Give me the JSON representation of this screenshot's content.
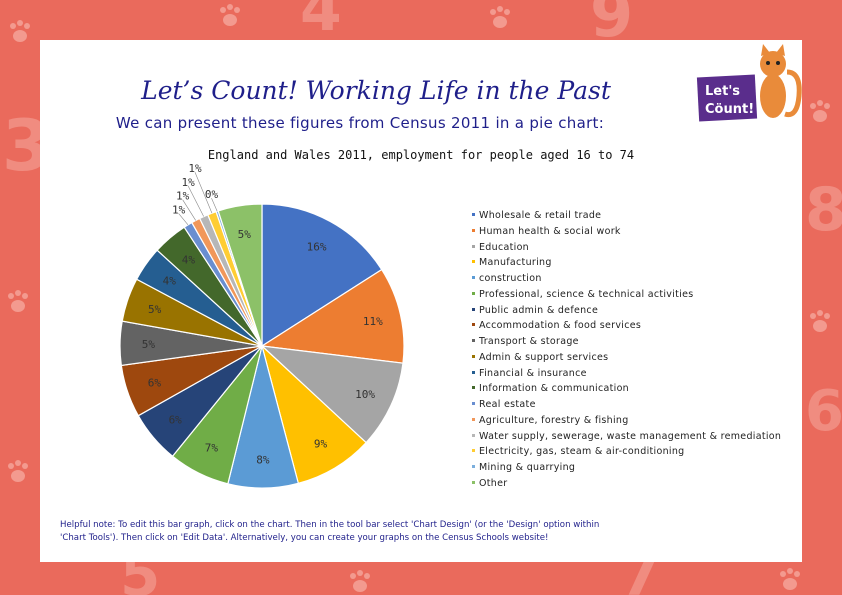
{
  "header": {
    "title": "Let’s Count! Working Life in the Past",
    "subtitle": "We can present these figures from Census 2011 in a pie chart:"
  },
  "logo": {
    "text_line1": "Let's",
    "text_line2": "Cöunt!"
  },
  "colors": {
    "background": "#ea6a5c",
    "title": "#1f1f8a",
    "card": "#ffffff"
  },
  "chart_data": {
    "type": "pie",
    "title": "England and Wales 2011, employment for people aged 16 to 74",
    "categories": [
      "Wholesale & retail trade",
      "Human health & social work",
      "Education",
      "Manufacturing",
      "construction",
      "Professional, science & technical activities",
      "Public admin & defence",
      "Accommodation & food services",
      "Transport & storage",
      "Admin & support services",
      "Financial & insurance",
      "Information & communication",
      "Real estate",
      "Agriculture, forestry & fishing",
      "Water supply, sewerage, waste management & remediation",
      "Electricity, gas, steam & air-conditioning",
      "Mining & quarrying",
      "Other"
    ],
    "values": [
      16,
      11,
      10,
      9,
      8,
      7,
      6,
      6,
      5,
      5,
      4,
      4,
      1,
      1,
      1,
      1,
      0,
      5
    ],
    "labels": [
      "16%",
      "11%",
      "10%",
      "9%",
      "8%",
      "7%",
      "6%",
      "6%",
      "5%",
      "5%",
      "4%",
      "4%",
      "1%",
      "1%",
      "1%",
      "1%",
      "0%",
      "5%"
    ],
    "colors": [
      "#4472c4",
      "#ed7d31",
      "#a5a5a5",
      "#ffc000",
      "#5b9bd5",
      "#70ad47",
      "#264478",
      "#9e480e",
      "#636363",
      "#997300",
      "#255e91",
      "#43682b",
      "#698ed0",
      "#f1975a",
      "#b7b7b7",
      "#ffcd33",
      "#7cafdd",
      "#8cc168"
    ],
    "legend_position": "right"
  },
  "note": "Helpful note: To edit this bar graph, click on the chart. Then in the tool bar select 'Chart Design' (or the 'Design' option within 'Chart Tools'). Then click on 'Edit Data'. Alternatively, you can create your graphs on the Census Schools website!"
}
